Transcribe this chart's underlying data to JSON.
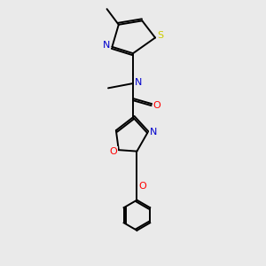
{
  "background_color": "#eaeaea",
  "bond_color": "#000000",
  "atom_colors": {
    "N": "#0000cc",
    "O": "#ff0000",
    "S": "#cccc00",
    "C": "#000000"
  },
  "figsize": [
    3.0,
    3.0
  ],
  "dpi": 100
}
